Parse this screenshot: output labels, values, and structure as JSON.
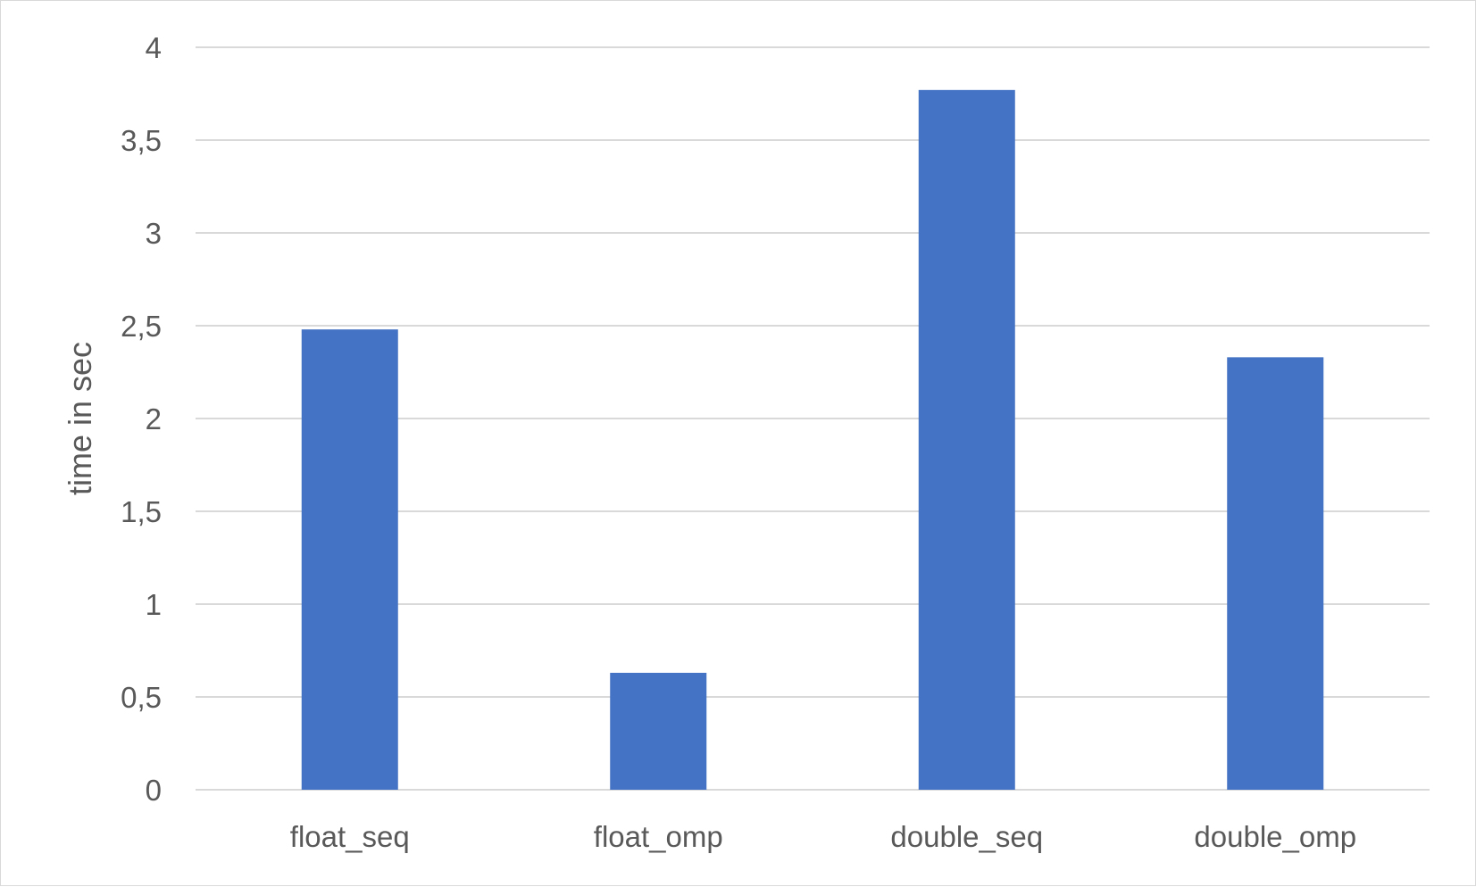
{
  "chart_data": {
    "type": "bar",
    "categories": [
      "float_seq",
      "float_omp",
      "double_seq",
      "double_omp"
    ],
    "values": [
      2.48,
      0.63,
      3.77,
      2.33
    ],
    "title": "",
    "xlabel": "",
    "ylabel": "time in sec",
    "ylim": [
      0,
      4
    ],
    "yticks": [
      0,
      0.5,
      1,
      1.5,
      2,
      2.5,
      3,
      3.5,
      4
    ],
    "ytick_labels": [
      "0",
      "0,5",
      "1",
      "1,5",
      "2",
      "2,5",
      "3",
      "3,5",
      "4"
    ],
    "grid": true,
    "legend": "none",
    "bar_color": "#4472c4",
    "grid_color": "#d9d9d9",
    "text_color": "#595959"
  }
}
